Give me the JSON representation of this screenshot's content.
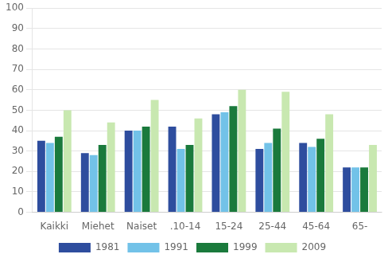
{
  "chart_data": {
    "type": "bar",
    "categories": [
      "Kaikki",
      "Miehet",
      "Naiset",
      ".10-14",
      "15-24",
      "25-44",
      "45-64",
      "65-"
    ],
    "series": [
      {
        "name": "1981",
        "color": "#2E4D9E",
        "values": [
          35,
          29,
          40,
          42,
          48,
          31,
          34,
          22
        ]
      },
      {
        "name": "1991",
        "color": "#72C2E8",
        "values": [
          34,
          28,
          40,
          31,
          49,
          34,
          32,
          22
        ]
      },
      {
        "name": "1999",
        "color": "#1A7A3C",
        "values": [
          37,
          33,
          42,
          33,
          52,
          41,
          36,
          22
        ]
      },
      {
        "name": "2009",
        "color": "#C8E8B0",
        "values": [
          50,
          44,
          55,
          46,
          60,
          59,
          48,
          33
        ]
      }
    ],
    "ylim": [
      0,
      100
    ],
    "yticks": [
      0,
      10,
      20,
      30,
      40,
      50,
      60,
      70,
      80,
      90,
      100
    ],
    "grid": true,
    "legend": "bottom"
  }
}
